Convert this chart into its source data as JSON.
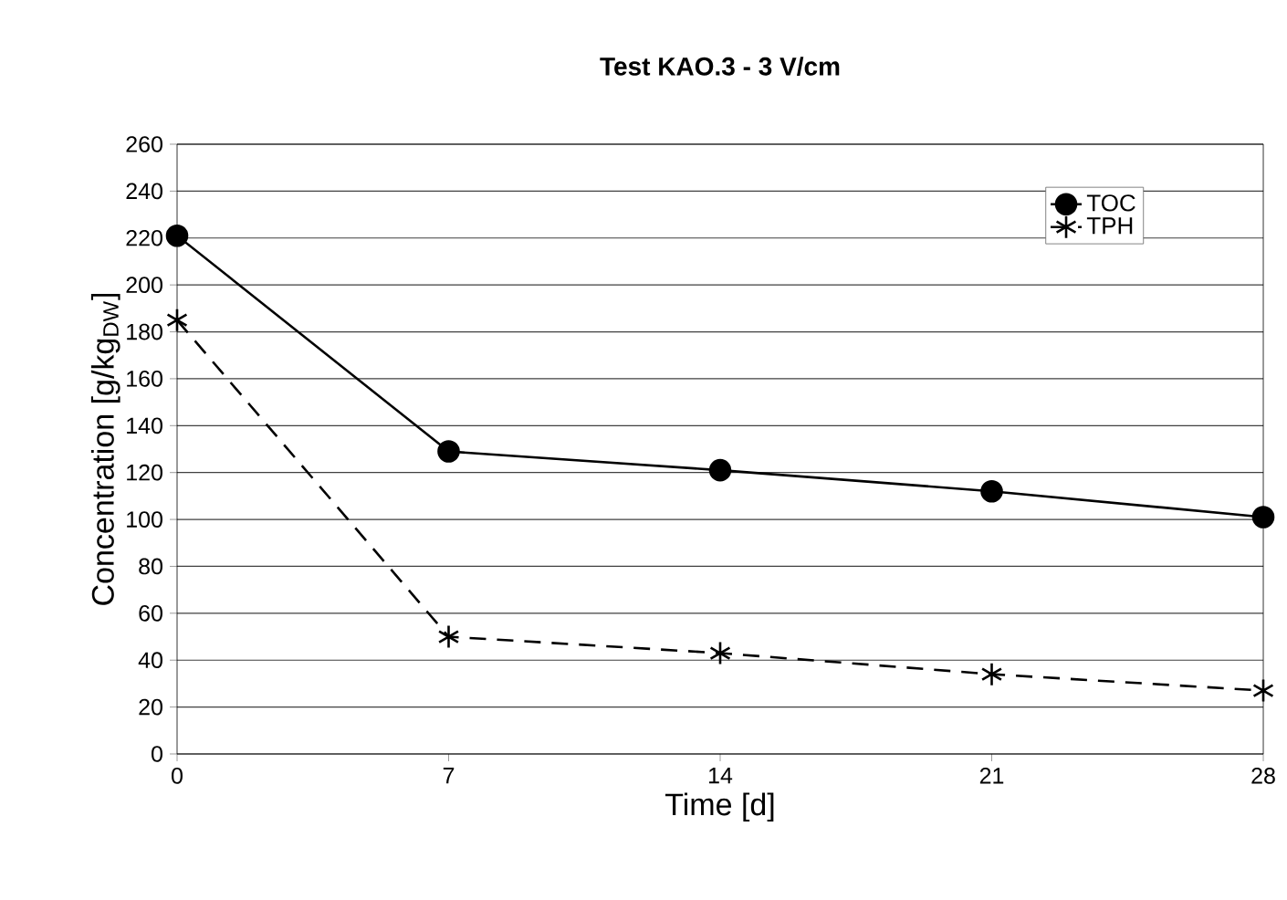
{
  "chart_data": {
    "type": "line",
    "title": "**Test KAO.3 - 3 V/cm**",
    "xlabel": "Time [d]",
    "ylabel": "Concentration [g/kg$_{DW}$]",
    "x": [
      0,
      7,
      14,
      21,
      28
    ],
    "series": [
      {
        "name": "TOC",
        "color": "#000000",
        "marker": "circle",
        "line_style": "solid",
        "values": [
          221,
          129,
          121,
          112,
          101
        ]
      },
      {
        "name": "TPH",
        "color": "#000000",
        "marker": "cross",
        "line_style": "dashed",
        "values": [
          185,
          50,
          43,
          34,
          27
        ]
      }
    ],
    "xlim": [
      0,
      28
    ],
    "xticks": [
      0,
      7,
      14,
      21,
      28
    ],
    "ylim": [
      0,
      260
    ],
    "yticks": [
      0,
      20,
      40,
      60,
      80,
      100,
      120,
      140,
      160,
      180,
      200,
      220,
      240,
      260
    ],
    "grid": "y",
    "legend": "top right"
  }
}
